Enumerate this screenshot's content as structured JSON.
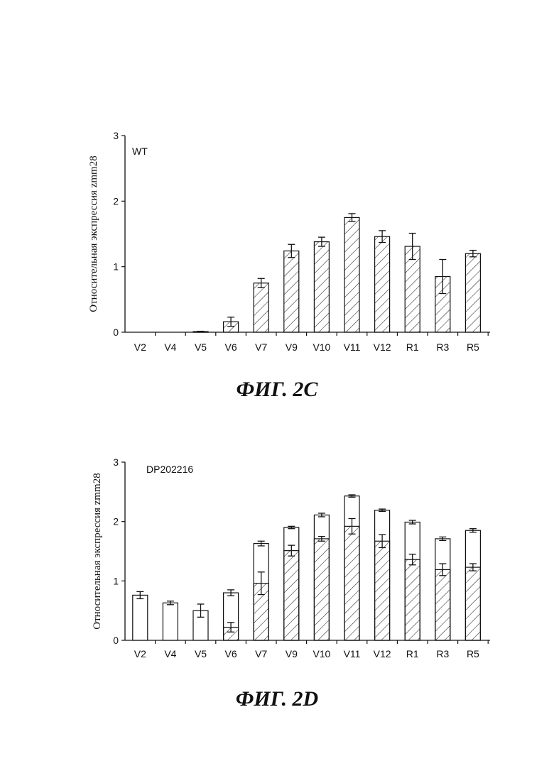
{
  "figures": [
    {
      "caption": "ФИГ. 2С",
      "chart_data": {
        "type": "bar",
        "label": "WT",
        "ylabel": "Относительная экспрессия zmm28",
        "xlabel": "",
        "ylim": [
          0,
          3
        ],
        "yticks": [
          "0",
          "1",
          "2",
          "3"
        ],
        "categories": [
          "V2",
          "V4",
          "V5",
          "V6",
          "V7",
          "V9",
          "V10",
          "V11",
          "V12",
          "R1",
          "R3",
          "R5"
        ],
        "series": [
          {
            "pattern": "hatched",
            "values": [
              0,
              0,
              0.01,
              0.16,
              0.75,
              1.24,
              1.38,
              1.75,
              1.46,
              1.31,
              0.85,
              1.2
            ],
            "errors": [
              0,
              0,
              0.005,
              0.07,
              0.07,
              0.1,
              0.07,
              0.06,
              0.09,
              0.2,
              0.26,
              0.05
            ]
          }
        ]
      }
    },
    {
      "caption": "ФИГ. 2D",
      "chart_data": {
        "type": "bar",
        "label": "DP202216",
        "ylabel": "Относительная экспрессия zmm28",
        "xlabel": "",
        "ylim": [
          0,
          3
        ],
        "yticks": [
          "0",
          "1",
          "2",
          "3"
        ],
        "categories": [
          "V2",
          "V4",
          "V5",
          "V6",
          "V7",
          "V9",
          "V10",
          "V11",
          "V12",
          "R1",
          "R3",
          "R5"
        ],
        "series": [
          {
            "pattern": "open",
            "values": [
              0.76,
              0.63,
              0.5,
              0.8,
              1.63,
              1.9,
              2.11,
              2.43,
              2.19,
              1.99,
              1.71,
              1.85
            ],
            "errors": [
              0.06,
              0.03,
              0.11,
              0.05,
              0.04,
              0.02,
              0.03,
              0.02,
              0.02,
              0.03,
              0.03,
              0.03
            ]
          },
          {
            "pattern": "hatched",
            "values": [
              0,
              0,
              0,
              0.22,
              0.96,
              1.51,
              1.71,
              1.92,
              1.67,
              1.36,
              1.19,
              1.23
            ],
            "errors": [
              0,
              0,
              0,
              0.08,
              0.19,
              0.09,
              0.04,
              0.13,
              0.11,
              0.09,
              0.1,
              0.06
            ]
          }
        ]
      }
    }
  ]
}
